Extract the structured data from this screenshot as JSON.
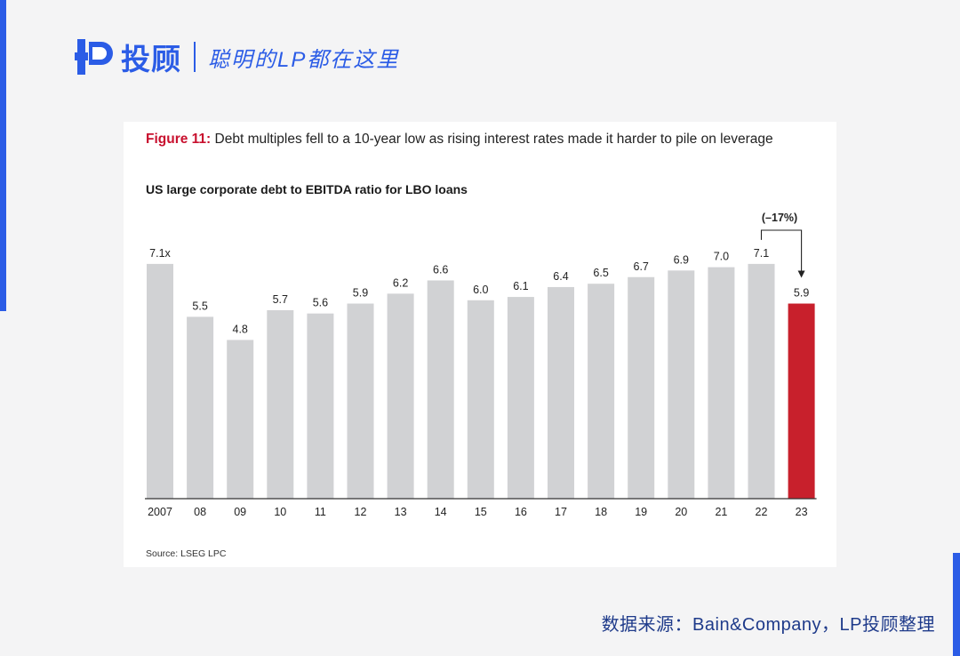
{
  "header": {
    "brand_name": "投顾",
    "slogan": "聪明的LP都在这里",
    "colors": {
      "brand": "#2b5ce6"
    }
  },
  "figure": {
    "label": "Figure 11:",
    "caption": "Debt multiples fell to a 10-year low as rising interest rates made it harder to pile on leverage",
    "source": "Source: LSEG LPC"
  },
  "chart_data": {
    "type": "bar",
    "title": "US large corporate debt to EBITDA ratio for LBO loans",
    "xlabel": "",
    "ylabel": "",
    "categories": [
      "2007",
      "08",
      "09",
      "10",
      "11",
      "12",
      "13",
      "14",
      "15",
      "16",
      "17",
      "18",
      "19",
      "20",
      "21",
      "22",
      "23"
    ],
    "values": [
      7.1,
      5.5,
      4.8,
      5.7,
      5.6,
      5.9,
      6.2,
      6.6,
      6.0,
      6.1,
      6.4,
      6.5,
      6.7,
      6.9,
      7.0,
      7.1,
      5.9
    ],
    "data_labels": [
      "7.1x",
      "5.5",
      "4.8",
      "5.7",
      "5.6",
      "5.9",
      "6.2",
      "6.6",
      "6.0",
      "6.1",
      "6.4",
      "6.5",
      "6.7",
      "6.9",
      "7.0",
      "7.1",
      "5.9"
    ],
    "highlight_index": 16,
    "annotation": {
      "text": "(–17%)",
      "from_index": 15,
      "to_index": 16
    },
    "ylim": [
      0,
      7.5
    ],
    "grid": false,
    "colors": {
      "bar": "#d1d2d4",
      "highlight": "#c8202c",
      "axis": "#333333"
    }
  },
  "footer": {
    "credit": "数据来源：Bain&Company，LP投顾整理"
  }
}
